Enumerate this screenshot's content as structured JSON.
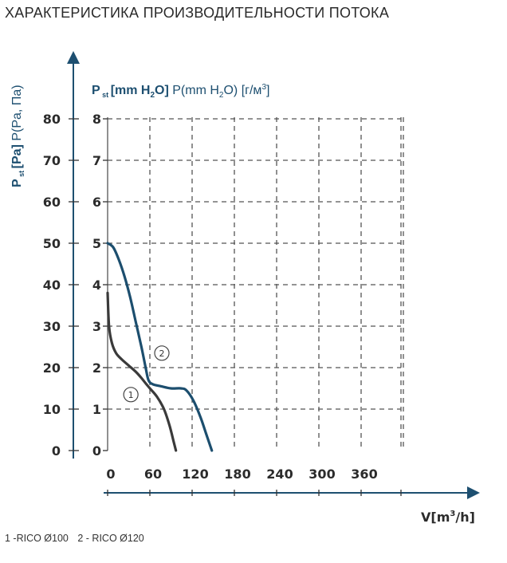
{
  "title": "ХАРАКТЕРИСТИКА ПРОИЗВОДИТЕЛЬНОСТИ ПОТОКА",
  "legend": [
    "1 -RICO Ø100",
    "2 - RICO Ø120"
  ],
  "colors": {
    "axis": "#1d4f70",
    "curve1": "#3a3a3a",
    "curve2": "#1c4e6e",
    "grid": "#555555"
  },
  "chart_data": {
    "type": "line",
    "title": "",
    "xlabel": "V[m³/h]",
    "ylabel_left": "P st [Pa] P(Pa, Па)",
    "ylabel_top": "P st [mm H2O] P(mm H2O) [г/м³]",
    "x_ticks": [
      0,
      60,
      120,
      180,
      240,
      300,
      360
    ],
    "y_ticks_pa": [
      0,
      10,
      20,
      30,
      40,
      50,
      60,
      70,
      80
    ],
    "y_ticks_mm": [
      0,
      1,
      2,
      3,
      4,
      5,
      6,
      7,
      8
    ],
    "xlim": [
      0,
      420
    ],
    "ylim_mm": [
      0,
      8
    ],
    "grid": true,
    "series": [
      {
        "name": "1",
        "x": [
          0,
          2,
          6,
          12,
          20,
          30,
          40,
          48,
          55,
          60,
          70,
          80,
          88,
          94,
          97
        ],
        "y": [
          3.8,
          3.0,
          2.6,
          2.35,
          2.2,
          2.05,
          1.9,
          1.75,
          1.6,
          1.5,
          1.3,
          1.0,
          0.6,
          0.2,
          0.0
        ]
      },
      {
        "name": "2",
        "x": [
          0,
          8,
          16,
          24,
          32,
          40,
          48,
          54,
          58,
          64,
          76,
          90,
          104,
          112,
          122,
          132,
          140,
          148
        ],
        "y": [
          5.0,
          4.9,
          4.6,
          4.2,
          3.7,
          3.1,
          2.5,
          2.0,
          1.7,
          1.6,
          1.55,
          1.5,
          1.5,
          1.45,
          1.2,
          0.8,
          0.4,
          0.0
        ]
      }
    ]
  }
}
